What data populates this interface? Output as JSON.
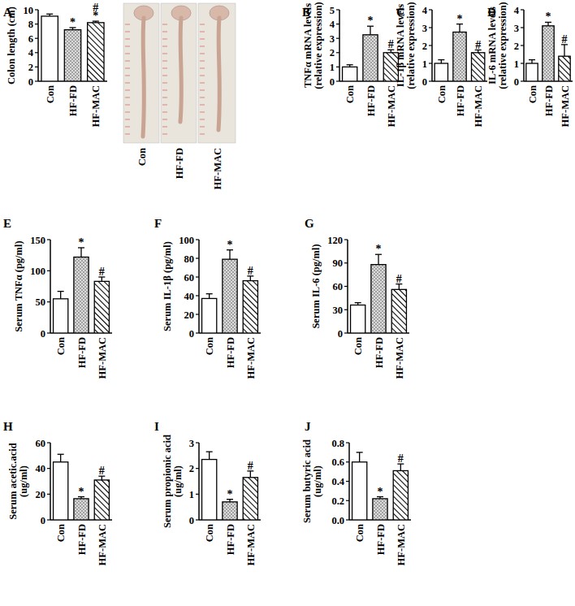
{
  "chart_data": [
    {
      "type": "bar",
      "title": "A",
      "ylabel": "Colon length (cm)",
      "categories": [
        "Con",
        "HF-FD",
        "HF-MAC"
      ],
      "values": [
        9.1,
        7.2,
        8.2
      ],
      "errors": [
        0.3,
        0.3,
        0.2
      ],
      "colors": [
        "#ffffff",
        "#d9d9d9",
        "#ffffff"
      ],
      "ylim": [
        0,
        10
      ],
      "yticks": [
        0,
        2,
        4,
        6,
        8,
        10
      ],
      "annotations": [
        null,
        [
          "*"
        ],
        [
          "*",
          "#"
        ]
      ]
    },
    {
      "type": "bar",
      "title": "B",
      "ylabel": "TNFα mRNA levels\n(relative expression)",
      "categories": [
        "Con",
        "HF-FD",
        "HF-MAC"
      ],
      "values": [
        1.0,
        3.25,
        2.0
      ],
      "errors": [
        0.15,
        0.6,
        0.2
      ],
      "colors": [
        "#ffffff",
        "#d9d9d9",
        "#ffffff"
      ],
      "ylim": [
        0,
        5
      ],
      "yticks": [
        0,
        1,
        2,
        3,
        4,
        5
      ],
      "annotations": [
        null,
        [
          "*"
        ],
        [
          "#"
        ]
      ]
    },
    {
      "type": "bar",
      "title": "C",
      "ylabel": "IL-1β mRNA levels\n(relative expression)",
      "categories": [
        "Con",
        "HF-FD",
        "HF-MAC"
      ],
      "values": [
        1.0,
        2.75,
        1.6
      ],
      "errors": [
        0.2,
        0.45,
        0.15
      ],
      "colors": [
        "#ffffff",
        "#d9d9d9",
        "#ffffff"
      ],
      "ylim": [
        0,
        4
      ],
      "yticks": [
        0,
        1,
        2,
        3,
        4
      ],
      "annotations": [
        null,
        [
          "*"
        ],
        [
          "#"
        ]
      ]
    },
    {
      "type": "bar",
      "title": "D",
      "ylabel": "IL-6 mRNA levels\n(relative expression)",
      "categories": [
        "Con",
        "HF-FD",
        "HF-MAC"
      ],
      "values": [
        1.0,
        3.1,
        1.4
      ],
      "errors": [
        0.2,
        0.2,
        0.65
      ],
      "colors": [
        "#ffffff",
        "#d9d9d9",
        "#ffffff"
      ],
      "ylim": [
        0,
        4
      ],
      "yticks": [
        0,
        1,
        2,
        3,
        4
      ],
      "annotations": [
        null,
        [
          "*"
        ],
        [
          "#"
        ]
      ]
    },
    {
      "type": "bar",
      "title": "E",
      "ylabel": "Serum TNFα (pg/ml)",
      "categories": [
        "Con",
        "HF-FD",
        "HF-MAC"
      ],
      "values": [
        55,
        122,
        83
      ],
      "errors": [
        12,
        15,
        7
      ],
      "colors": [
        "#ffffff",
        "#d9d9d9",
        "#ffffff"
      ],
      "ylim": [
        0,
        150
      ],
      "yticks": [
        0,
        50,
        100,
        150
      ],
      "annotations": [
        null,
        [
          "*"
        ],
        [
          "#"
        ]
      ]
    },
    {
      "type": "bar",
      "title": "F",
      "ylabel": "Serum IL-1β (pg/ml)",
      "categories": [
        "Con",
        "HF-FD",
        "HF-MAC"
      ],
      "values": [
        37,
        79,
        56
      ],
      "errors": [
        5,
        10,
        5
      ],
      "colors": [
        "#ffffff",
        "#d9d9d9",
        "#ffffff"
      ],
      "ylim": [
        0,
        100
      ],
      "yticks": [
        0,
        20,
        40,
        60,
        80,
        100
      ],
      "annotations": [
        null,
        [
          "*"
        ],
        [
          "#"
        ]
      ]
    },
    {
      "type": "bar",
      "title": "G",
      "ylabel": "Serum IL-6 (pg/ml)",
      "categories": [
        "Con",
        "HF-FD",
        "HF-MAC"
      ],
      "values": [
        36,
        88,
        56
      ],
      "errors": [
        3,
        13,
        7
      ],
      "colors": [
        "#ffffff",
        "#d9d9d9",
        "#ffffff"
      ],
      "ylim": [
        0,
        120
      ],
      "yticks": [
        0,
        30,
        60,
        90,
        120
      ],
      "annotations": [
        null,
        [
          "*"
        ],
        [
          "#"
        ]
      ]
    },
    {
      "type": "bar",
      "title": "H",
      "ylabel": "Serum acetic.acid\n(ug/ml)",
      "categories": [
        "Con",
        "HF-FD",
        "HF-MAC"
      ],
      "values": [
        45,
        16.5,
        31
      ],
      "errors": [
        6,
        1.5,
        3
      ],
      "colors": [
        "#ffffff",
        "#d9d9d9",
        "#ffffff"
      ],
      "ylim": [
        0,
        60
      ],
      "yticks": [
        0,
        20,
        40,
        60
      ],
      "annotations": [
        null,
        [
          "*"
        ],
        [
          "#"
        ]
      ]
    },
    {
      "type": "bar",
      "title": "I",
      "ylabel": "Serum propionic acid\n(ug/ml)",
      "categories": [
        "Con",
        "HF-FD",
        "HF-MAC"
      ],
      "values": [
        2.35,
        0.7,
        1.65
      ],
      "errors": [
        0.3,
        0.1,
        0.25
      ],
      "colors": [
        "#ffffff",
        "#d9d9d9",
        "#ffffff"
      ],
      "ylim": [
        0,
        3
      ],
      "yticks": [
        0,
        1,
        2,
        3
      ],
      "annotations": [
        null,
        [
          "*"
        ],
        [
          "#"
        ]
      ]
    },
    {
      "type": "bar",
      "title": "J",
      "ylabel": "Serum butyric acid\n(ug/ml)",
      "categories": [
        "Con",
        "HF-FD",
        "HF-MAC"
      ],
      "values": [
        0.6,
        0.22,
        0.51
      ],
      "errors": [
        0.1,
        0.02,
        0.07
      ],
      "colors": [
        "#ffffff",
        "#d9d9d9",
        "#ffffff"
      ],
      "ylim": [
        0,
        0.8
      ],
      "yticks": [
        {
          "value": 0,
          "label": "0.0"
        },
        0.2,
        0.4,
        0.6,
        0.8
      ],
      "annotations": [
        null,
        [
          "*"
        ],
        [
          "#"
        ]
      ]
    }
  ],
  "photo": {
    "labels": [
      "Con",
      "HF-FD",
      "HF-MAC"
    ]
  }
}
